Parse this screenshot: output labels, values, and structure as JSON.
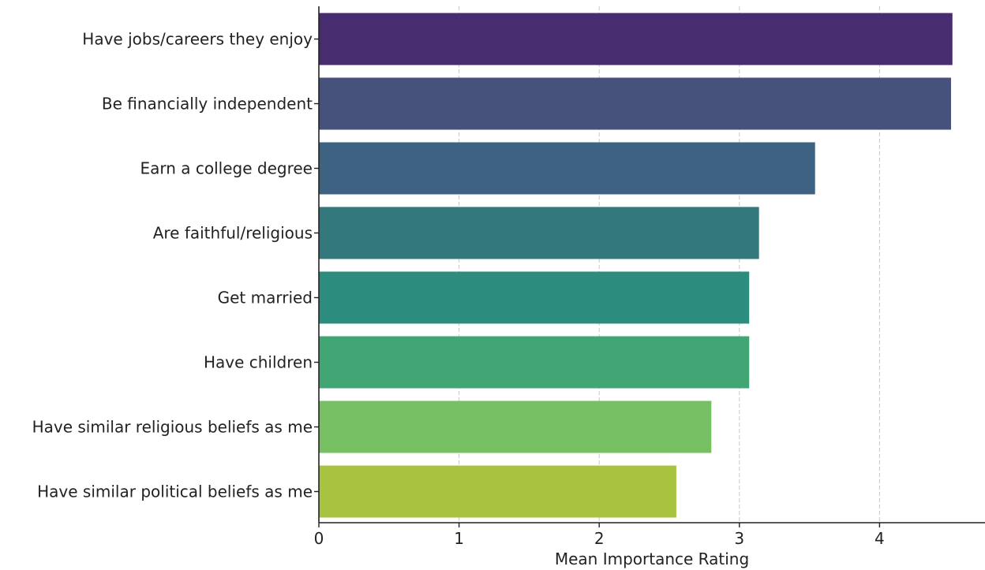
{
  "chart_data": {
    "type": "bar",
    "orientation": "horizontal",
    "title": "",
    "xlabel": "Mean Importance Rating",
    "ylabel": "",
    "xlim": [
      0,
      4.6
    ],
    "xticks": [
      0,
      1,
      2,
      3,
      4
    ],
    "grid": "vertical dashed",
    "legend": "none",
    "categories": [
      "Have jobs/careers they enjoy",
      "Be financially independent",
      "Earn a college degree",
      "Are faithful/religious",
      "Get married",
      "Have children",
      "Have similar religious beliefs as me",
      "Have similar political beliefs as me"
    ],
    "values": [
      4.52,
      4.51,
      3.54,
      3.14,
      3.07,
      3.07,
      2.8,
      2.55
    ],
    "colors": [
      "#472d6f",
      "#46527c",
      "#3e6382",
      "#33787c",
      "#2c8c7e",
      "#42a674",
      "#76bf63",
      "#a8c340"
    ]
  }
}
